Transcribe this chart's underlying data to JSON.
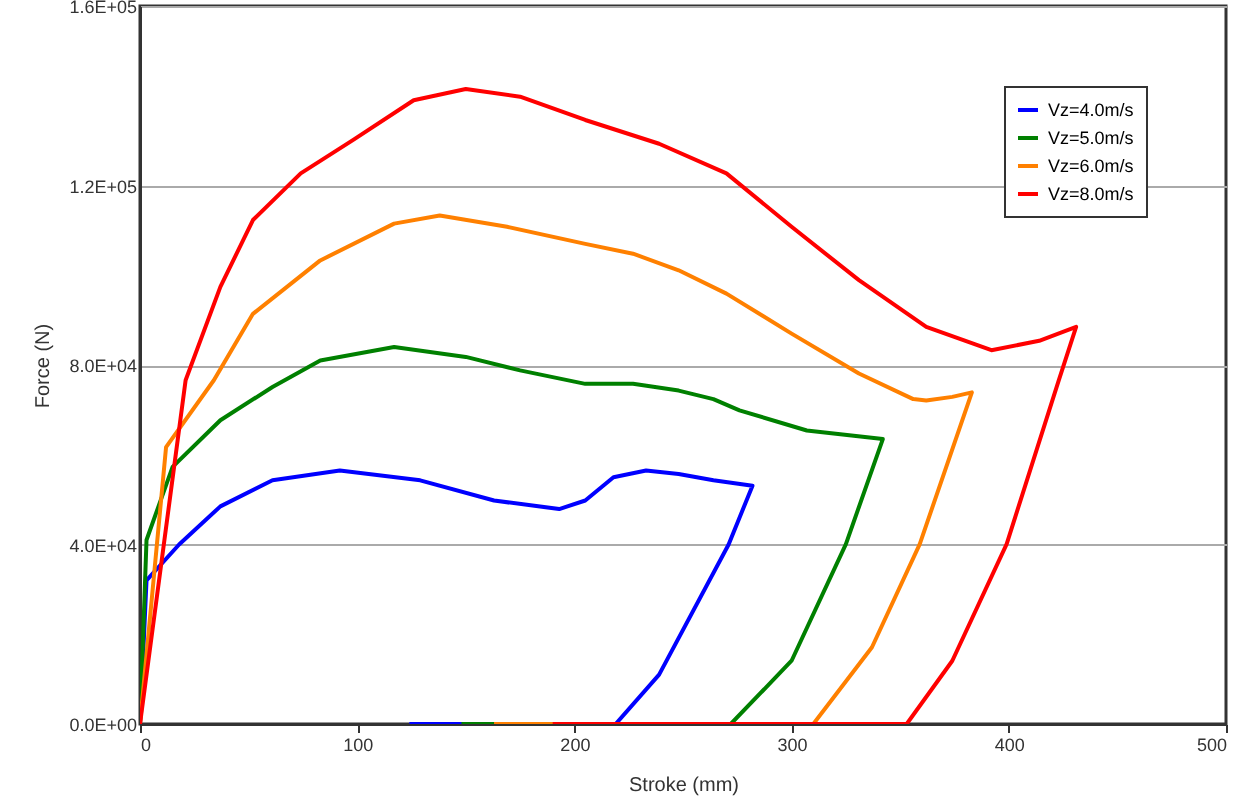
{
  "chart_data": {
    "type": "line",
    "xlabel": "Stroke (mm)",
    "ylabel": "Force (N)",
    "xlim": [
      0,
      500
    ],
    "xticks": [
      0,
      100,
      200,
      300,
      400,
      500
    ],
    "ylim": [
      0,
      160000
    ],
    "yticks": [
      {
        "value": 0,
        "label": "0.0E+00"
      },
      {
        "value": 40000,
        "label": "4.0E+04"
      },
      {
        "value": 80000,
        "label": "8.0E+04"
      },
      {
        "value": 120000,
        "label": "1.2E+05"
      },
      {
        "value": 160000,
        "label": "1.6E+05"
      }
    ],
    "grid": "y",
    "legend": "top right",
    "line_style": "solid",
    "marker": "none",
    "series": [
      {
        "name": "Vz=4.0m/s",
        "color": "#0000ff",
        "x": [
          0,
          3,
          18,
          37,
          61,
          92,
          129,
          163,
          193,
          205,
          218,
          233,
          248,
          264,
          282,
          271,
          239,
          219,
          124
        ],
        "values": [
          0,
          32000,
          40000,
          48500,
          54300,
          56500,
          54300,
          49800,
          47900,
          49800,
          55000,
          56500,
          55700,
          54300,
          53100,
          40000,
          11000,
          0,
          0
        ]
      },
      {
        "name": "Vz=5.0m/s",
        "color": "#008000",
        "x": [
          0,
          3,
          15,
          37,
          61,
          83,
          117,
          150,
          175,
          205,
          227,
          248,
          264,
          276,
          307,
          342,
          325,
          300,
          272,
          148
        ],
        "values": [
          0,
          41000,
          57300,
          67700,
          75100,
          81000,
          84000,
          81800,
          78800,
          75800,
          75800,
          74300,
          72400,
          69900,
          65400,
          63500,
          40100,
          14100,
          0,
          0
        ]
      },
      {
        "name": "Vz=6.0m/s",
        "color": "#ff8000",
        "x": [
          0,
          12,
          34,
          52,
          83,
          117,
          138,
          169,
          205,
          227,
          248,
          270,
          300,
          331,
          356,
          362,
          374,
          383,
          359,
          337,
          310,
          163
        ],
        "values": [
          0,
          61700,
          76600,
          91400,
          103300,
          111500,
          113300,
          110800,
          107000,
          104800,
          101100,
          95900,
          87000,
          78100,
          72400,
          72100,
          72900,
          73900,
          40100,
          17100,
          0,
          0
        ]
      },
      {
        "name": "Vz=8.0m/s",
        "color": "#ff0000",
        "x": [
          0,
          21,
          37,
          52,
          74,
          98,
          126,
          150,
          175,
          205,
          239,
          270,
          300,
          331,
          362,
          392,
          414,
          431,
          423,
          399,
          374,
          353,
          190
        ],
        "values": [
          0,
          76600,
          97400,
          112300,
          122700,
          130100,
          139000,
          141500,
          139800,
          134600,
          129300,
          122700,
          110800,
          98900,
          88500,
          83300,
          85400,
          88500,
          76600,
          40100,
          14100,
          0,
          0
        ]
      }
    ]
  }
}
